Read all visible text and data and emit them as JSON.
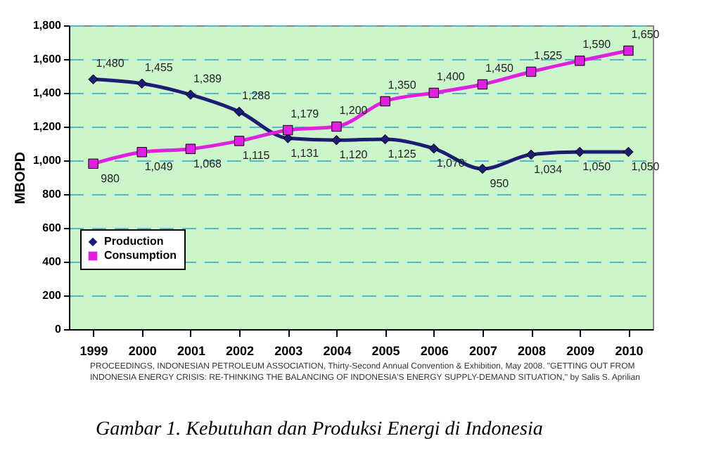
{
  "chart_data": {
    "type": "line",
    "ylabel": "MBOPD",
    "categories": [
      "1999",
      "2000",
      "2001",
      "2002",
      "2003",
      "2004",
      "2005",
      "2006",
      "2007",
      "2008",
      "2009",
      "2010"
    ],
    "series": [
      {
        "name": "Production",
        "color": "#1c1c72",
        "marker": "diamond",
        "values": [
          1480,
          1455,
          1389,
          1288,
          1131,
          1120,
          1125,
          1070,
          950,
          1034,
          1050,
          1050
        ],
        "value_labels": [
          "1,480",
          "1,455",
          "1,389",
          "1,288",
          "1,131",
          "1,120",
          "1,125",
          "1,070",
          "950",
          "1,034",
          "1,050",
          "1,050"
        ]
      },
      {
        "name": "Consumption",
        "color": "#e020e0",
        "marker": "square",
        "values": [
          980,
          1049,
          1068,
          1115,
          1179,
          1200,
          1350,
          1400,
          1450,
          1525,
          1590,
          1650
        ],
        "value_labels": [
          "980",
          "1,049",
          "1,068",
          "1,115",
          "1,179",
          "1,200",
          "1,350",
          "1,400",
          "1,450",
          "1,525",
          "1,590",
          "1,650"
        ]
      }
    ],
    "ylim": [
      0,
      1800
    ],
    "yticks": [
      0,
      200,
      400,
      600,
      800,
      {
        "value": 1000,
        "label": "1,000"
      },
      {
        "value": 1200,
        "label": "1,200"
      },
      {
        "value": 1400,
        "label": "1,400"
      },
      {
        "value": 1600,
        "label": "1,600"
      },
      {
        "value": 1800,
        "label": "1,800"
      }
    ],
    "grid": "y",
    "legend": "left",
    "line_style": "solid",
    "annotations": [
      "PROCEEDINGS, INDONESIAN PETROLEUM ASSOCIATION, Thirty-Second Annual Convention & Exhibition, May 2008. \"GETTING OUT FROM INDONESIA ENERGY CRISIS: RE-THINKING THE BALANCING OF INDONESIA'S ENERGY SUPPLY-DEMAND SITUATION,\" by Salis S. Aprilian",
      "Gambar 1. Kebutuhan dan Produksi Energi di Indonesia"
    ]
  }
}
